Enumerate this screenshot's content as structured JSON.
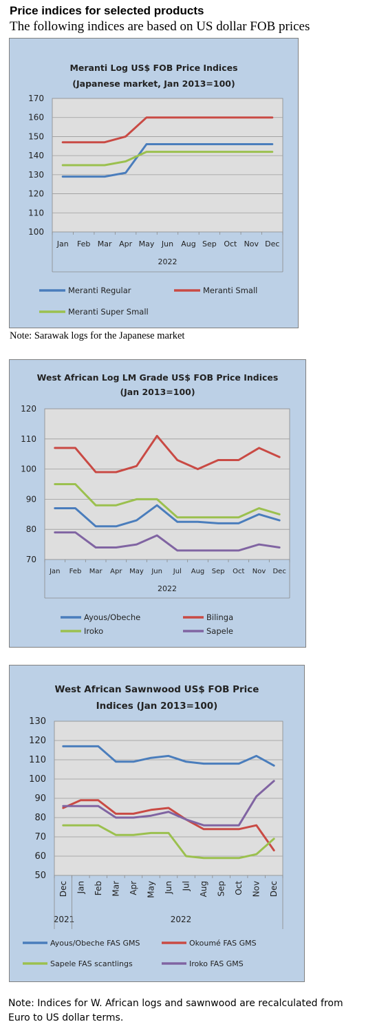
{
  "header": {
    "title": "Price indices for selected products",
    "subtitle": "The following indices are based on US dollar FOB prices"
  },
  "notes": {
    "note1": "Note: Sarawak logs for the Japanese market",
    "note2": "Note: Indices for W. African logs and sawnwood are recalculated from Euro to US dollar terms."
  },
  "colors": {
    "panel_bg": "#bcd0e6",
    "plot_bg": "#dedede",
    "blue": "#4a7dbc",
    "red": "#c94a44",
    "green": "#9bc04e",
    "purple": "#8064a2"
  },
  "chart_data": [
    {
      "type": "line",
      "title": "Meranti Log US$ FOB Price Indices",
      "subtitle": "(Japanese market, Jan 2013=100)",
      "xlabel": "2022",
      "ylabel": "",
      "categories": [
        "Jan",
        "Feb",
        "Mar",
        "Apr",
        "May",
        "Jun",
        "Aug",
        "Sep",
        "Oct",
        "Nov",
        "Dec"
      ],
      "ylim": [
        100,
        170
      ],
      "yticks": [
        100,
        110,
        120,
        130,
        140,
        150,
        160,
        170
      ],
      "grid": true,
      "legend": "bottom",
      "series": [
        {
          "name": "Meranti Regular",
          "color": "#4a7dbc",
          "values": [
            129,
            129,
            129,
            131,
            146,
            146,
            146,
            146,
            146,
            146,
            146
          ]
        },
        {
          "name": "Meranti Small",
          "color": "#c94a44",
          "values": [
            147,
            147,
            147,
            150,
            160,
            160,
            160,
            160,
            160,
            160,
            160
          ]
        },
        {
          "name": "Meranti Super Small",
          "color": "#9bc04e",
          "values": [
            135,
            135,
            135,
            137,
            142,
            142,
            142,
            142,
            142,
            142,
            142
          ]
        }
      ]
    },
    {
      "type": "line",
      "title": "West African Log LM Grade US$ FOB Price Indices",
      "subtitle": "(Jan 2013=100)",
      "xlabel": "2022",
      "ylabel": "",
      "categories": [
        "Jan",
        "Feb",
        "Mar",
        "Apr",
        "May",
        "Jun",
        "Jul",
        "Aug",
        "Sep",
        "Oct",
        "Nov",
        "Dec"
      ],
      "ylim": [
        70,
        120
      ],
      "yticks": [
        70,
        80,
        90,
        100,
        110,
        120
      ],
      "grid": true,
      "legend": "bottom",
      "series": [
        {
          "name": "Ayous/Obeche",
          "color": "#4a7dbc",
          "values": [
            87,
            87,
            81,
            81,
            83,
            88,
            82.5,
            82.5,
            82,
            82,
            85,
            83
          ]
        },
        {
          "name": "Bilinga",
          "color": "#c94a44",
          "values": [
            107,
            107,
            99,
            99,
            101,
            111,
            103,
            100,
            103,
            103,
            107,
            104
          ]
        },
        {
          "name": "Iroko",
          "color": "#9bc04e",
          "values": [
            95,
            95,
            88,
            88,
            90,
            90,
            84,
            84,
            84,
            84,
            87,
            85
          ]
        },
        {
          "name": "Sapele",
          "color": "#8064a2",
          "values": [
            79,
            79,
            74,
            74,
            75,
            78,
            73,
            73,
            73,
            73,
            75,
            74
          ]
        }
      ]
    },
    {
      "type": "line",
      "title": "West African Sawnwood US$ FOB Price",
      "subtitle": "Indices (Jan 2013=100)",
      "xlabel": "",
      "year_labels": [
        "2021",
        "2022"
      ],
      "ylabel": "",
      "categories": [
        "Dec",
        "Jan",
        "Feb",
        "Mar",
        "Apr",
        "May",
        "Jun",
        "Jul",
        "Aug",
        "Sep",
        "Oct",
        "Nov",
        "Dec"
      ],
      "ylim": [
        50,
        130
      ],
      "yticks": [
        50,
        60,
        70,
        80,
        90,
        100,
        110,
        120,
        130
      ],
      "grid": true,
      "legend": "bottom",
      "series": [
        {
          "name": "Ayous/Obeche FAS GMS",
          "color": "#4a7dbc",
          "values": [
            117,
            117,
            117,
            109,
            109,
            111,
            112,
            109,
            108,
            108,
            108,
            112,
            107
          ]
        },
        {
          "name": "Okoumé FAS GMS",
          "color": "#c94a44",
          "values": [
            85,
            89,
            89,
            82,
            82,
            84,
            85,
            79,
            74,
            74,
            74,
            76,
            63
          ]
        },
        {
          "name": "Sapele FAS scantlings",
          "color": "#9bc04e",
          "values": [
            76,
            76,
            76,
            71,
            71,
            72,
            72,
            60,
            59,
            59,
            59,
            61,
            69
          ]
        },
        {
          "name": "Iroko FAS GMS",
          "color": "#8064a2",
          "values": [
            86,
            86,
            86,
            80,
            80,
            81,
            83,
            79,
            76,
            76,
            76,
            91,
            99
          ]
        }
      ]
    }
  ]
}
